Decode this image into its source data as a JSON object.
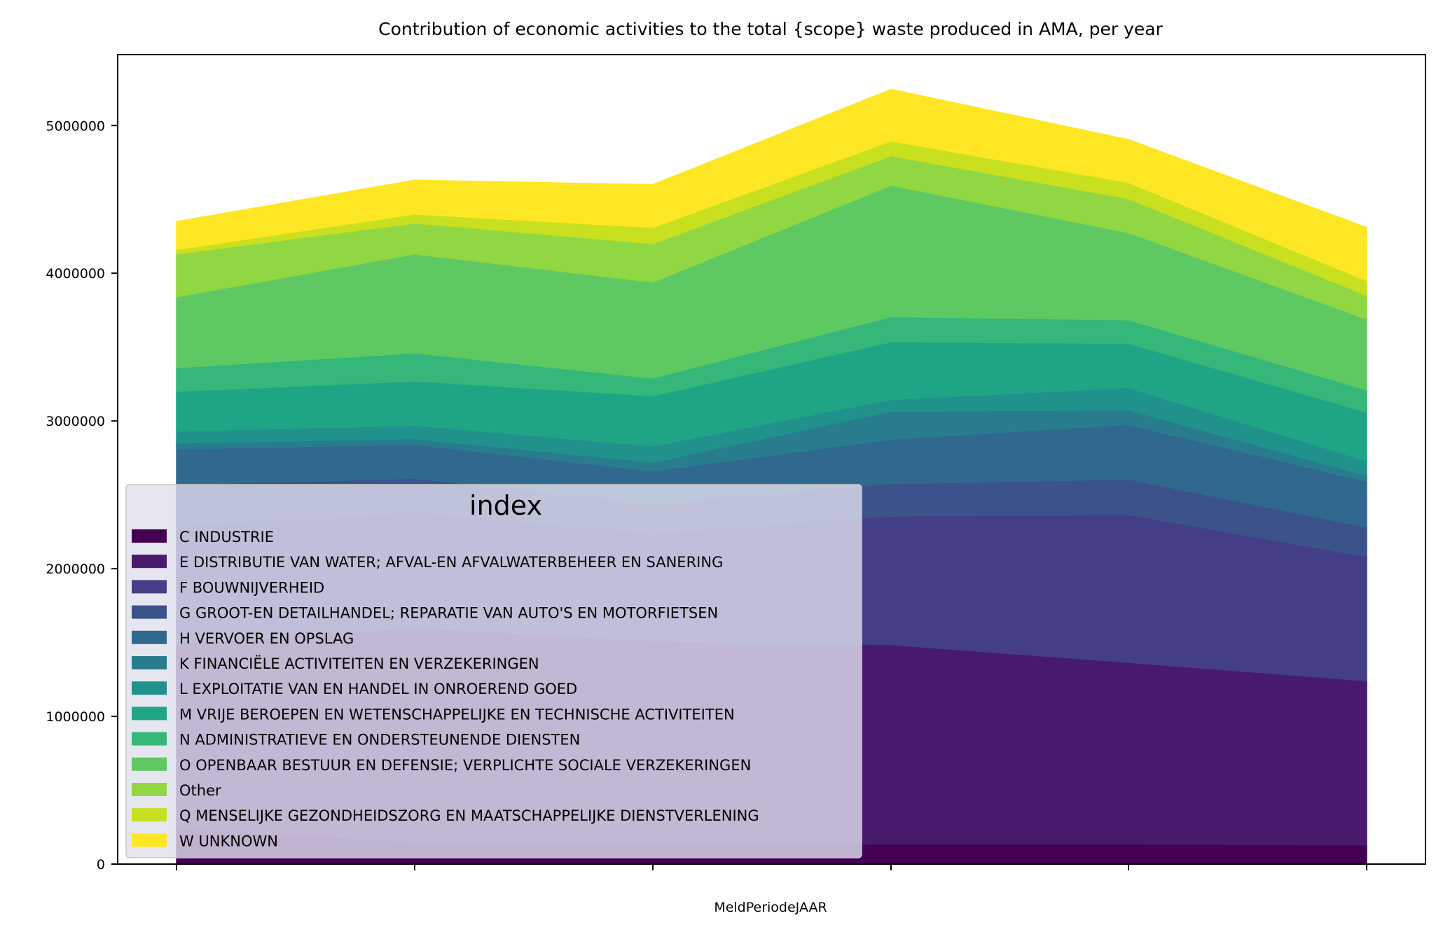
{
  "chart_data": {
    "type": "area",
    "stacked": true,
    "title": "Contribution of economic activities to the total {scope} waste produced in AMA, per year",
    "xlabel": "MeldPeriodeJAAR",
    "ylabel": "",
    "ylim": [
      0,
      5480000
    ],
    "yticks": [
      0,
      1000000,
      2000000,
      3000000,
      4000000,
      5000000
    ],
    "ytick_labels": [
      "0",
      "1000000",
      "2000000",
      "3000000",
      "4000000",
      "5000000"
    ],
    "x": [
      0,
      1,
      2,
      3,
      4,
      5
    ],
    "xtick_labels": [
      "",
      "",
      "",
      "",
      "",
      ""
    ],
    "grid": false,
    "legend": {
      "title": "index",
      "placement": "lower-left",
      "background": "#e0e0ee"
    },
    "series": [
      {
        "name": "C INDUSTRIE",
        "color": "#440154",
        "values": [
          240000,
          150000,
          130000,
          135000,
          135000,
          130000
        ]
      },
      {
        "name": "E DISTRIBUTIE VAN WATER; AFVAL-EN AFVALWATERBEHEER EN SANERING",
        "color": "#481a6c",
        "values": [
          1250000,
          1450000,
          1380000,
          1350000,
          1230000,
          1110000
        ]
      },
      {
        "name": "F BOUWNIJVERHEID",
        "color": "#433e85",
        "values": [
          800000,
          780000,
          730000,
          870000,
          1000000,
          840000
        ]
      },
      {
        "name": "G GROOT-EN DETAILHANDEL; REPARATIE VAN AUTO'S EN MOTORFIETSEN",
        "color": "#3b528b",
        "values": [
          280000,
          230000,
          200000,
          220000,
          240000,
          200000
        ]
      },
      {
        "name": "H VERVOER EN OPSLAG",
        "color": "#31688e",
        "values": [
          240000,
          230000,
          220000,
          300000,
          370000,
          310000
        ]
      },
      {
        "name": "K FINANCIËLE ACTIVITEITEN EN VERZEKERINGEN",
        "color": "#287c8e",
        "values": [
          40000,
          40000,
          60000,
          190000,
          100000,
          40000
        ]
      },
      {
        "name": "L EXPLOITATIE VAN EN HANDEL IN ONROEREND GOED",
        "color": "#21918c",
        "values": [
          80000,
          90000,
          110000,
          80000,
          150000,
          100000
        ]
      },
      {
        "name": "M VRIJE BEROEPEN EN WETENSCHAPPELIJKE EN TECHNISCHE ACTIVITEITEN",
        "color": "#20a486",
        "values": [
          270000,
          300000,
          340000,
          390000,
          300000,
          330000
        ]
      },
      {
        "name": "N ADMINISTRATIEVE EN ONDERSTEUNENDE DIENSTEN",
        "color": "#35b779",
        "values": [
          160000,
          190000,
          120000,
          170000,
          160000,
          150000
        ]
      },
      {
        "name": "O OPENBAAR BESTUUR EN DEFENSIE; VERPLICHTE SOCIALE VERZEKERINGEN",
        "color": "#5ec962",
        "values": [
          480000,
          670000,
          650000,
          890000,
          590000,
          480000
        ]
      },
      {
        "name": "Other",
        "color": "#90d743",
        "values": [
          290000,
          210000,
          260000,
          200000,
          230000,
          160000
        ]
      },
      {
        "name": "Q MENSELIJKE GEZONDHEIDSZORG EN MAATSCHAPPELIJKE DIENSTVERLENING",
        "color": "#c8e020",
        "values": [
          30000,
          60000,
          110000,
          100000,
          110000,
          100000
        ]
      },
      {
        "name": "W UNKNOWN",
        "color": "#fde725",
        "values": [
          190000,
          230000,
          290000,
          350000,
          290000,
          360000
        ]
      }
    ]
  }
}
